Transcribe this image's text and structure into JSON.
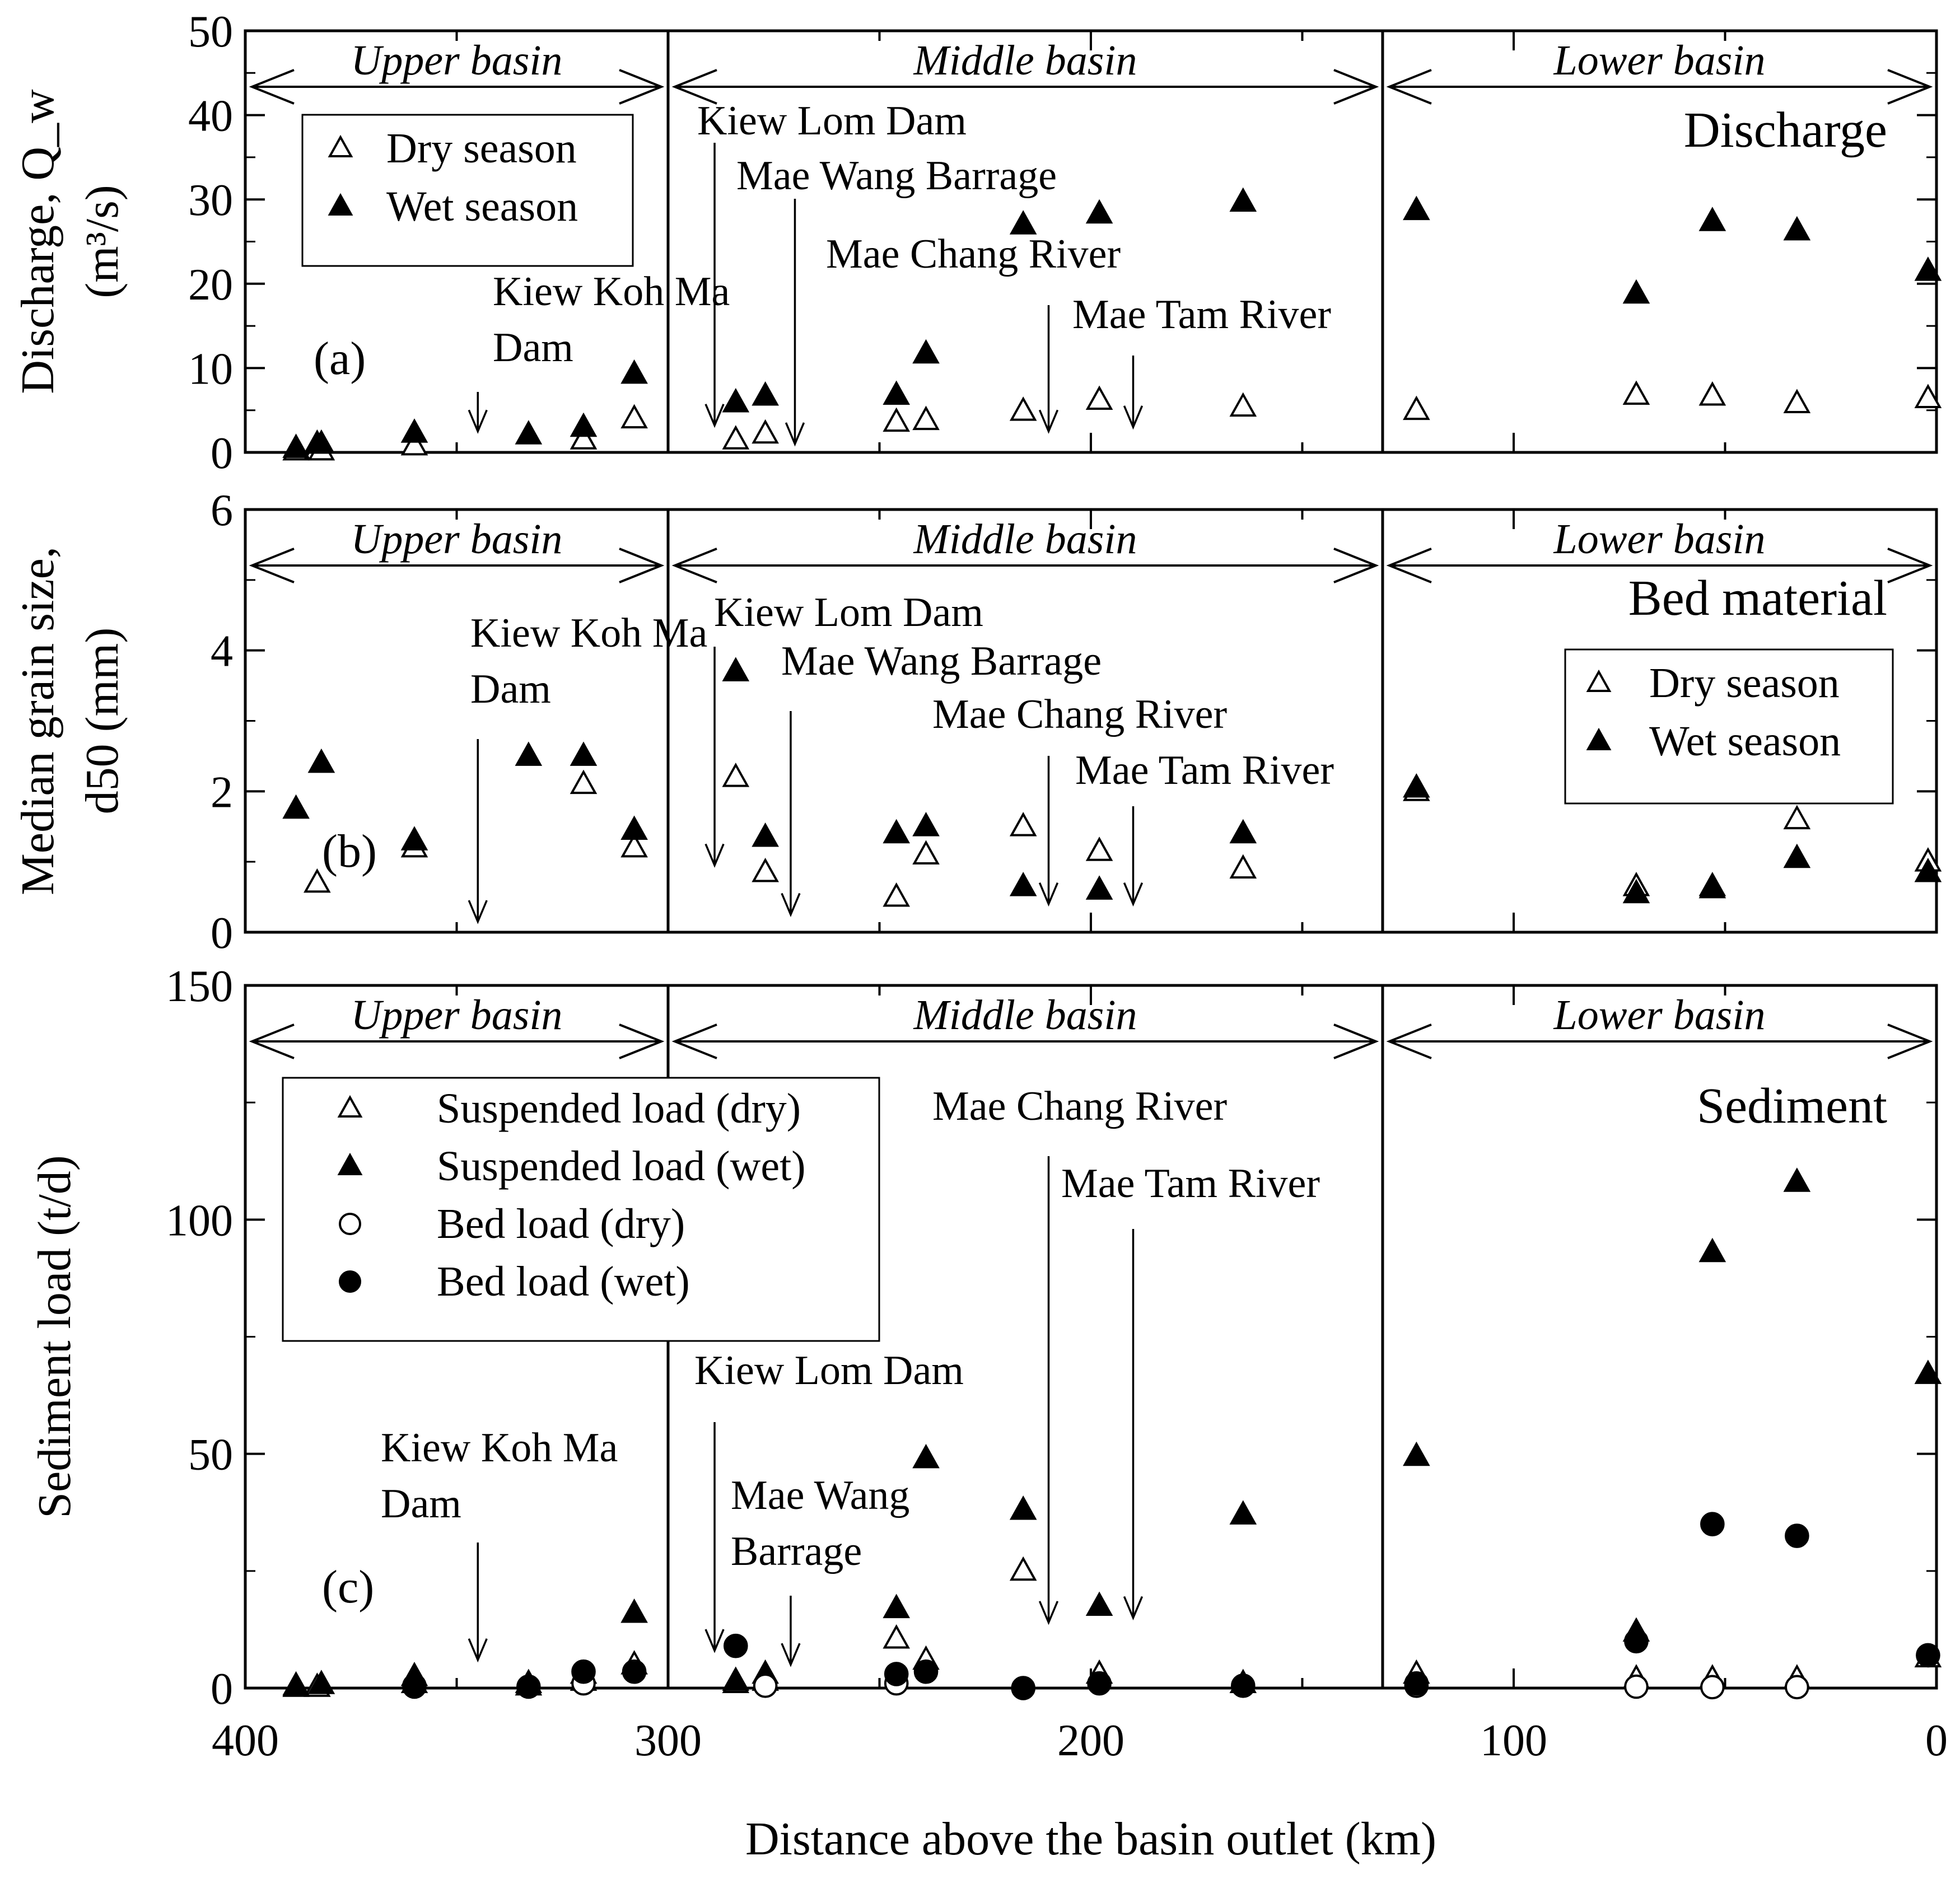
{
  "chart_data": [
    {
      "type": "scatter",
      "panel": "(a)",
      "title": "Discharge",
      "ylabel_lines": [
        "Discharge, Q_w",
        "(m³/s)"
      ],
      "ylim": [
        0,
        50
      ],
      "yticks": [
        0,
        10,
        20,
        30,
        40,
        50
      ],
      "xlim": [
        400,
        0
      ],
      "legend": {
        "entries": [
          "Dry season",
          "Wet season"
        ],
        "placement": "upper-left"
      },
      "regions": [
        "Upper basin",
        "Middle basin",
        "Lower basin"
      ],
      "annotations": [
        {
          "text": "Kiew Koh Ma Dam",
          "x": 345,
          "y_tip": 2.5
        },
        {
          "text": "Kiew Lom Dam",
          "x": 289,
          "y_tip": 3.2
        },
        {
          "text": "Mae Wang Barrage",
          "x": 270,
          "y_tip": 1
        },
        {
          "text": "Mae Chang River",
          "x": 210,
          "y_tip": 2.5
        },
        {
          "text": "Mae Tam River",
          "x": 190,
          "y_tip": 3
        }
      ],
      "series": [
        {
          "name": "Dry season",
          "marker": "open-triangle",
          "x": [
            388,
            383,
            382,
            360,
            320,
            308,
            284,
            277,
            246,
            239,
            216,
            198,
            164,
            123,
            71,
            53,
            33,
            2
          ],
          "y": [
            0.2,
            0.3,
            0.2,
            0.8,
            1.5,
            4,
            1.5,
            2.2,
            3.6,
            3.8,
            4.9,
            6.2,
            5.4,
            5,
            6.8,
            6.7,
            5.8,
            6.4
          ]
        },
        {
          "name": "Wet season",
          "marker": "filled-triangle",
          "x": [
            388,
            383,
            382,
            360,
            333,
            320,
            308,
            284,
            277,
            246,
            239,
            216,
            198,
            164,
            123,
            71,
            53,
            33,
            2
          ],
          "y": [
            0.5,
            1,
            1,
            2.3,
            2.1,
            3,
            9.3,
            5.9,
            6.7,
            6.8,
            11.7,
            27,
            28.3,
            29.7,
            28.7,
            18.8,
            27.4,
            26.3,
            21.5
          ]
        }
      ]
    },
    {
      "type": "scatter",
      "panel": "(b)",
      "title": "Bed material",
      "ylabel_lines": [
        "Median grain size,",
        "d50 (mm)"
      ],
      "ylim": [
        0,
        6
      ],
      "yticks": [
        0,
        2,
        4,
        6
      ],
      "xlim": [
        400,
        0
      ],
      "legend": {
        "entries": [
          "Dry season",
          "Wet season"
        ],
        "placement": "right"
      },
      "regions": [
        "Upper basin",
        "Middle basin",
        "Lower basin"
      ],
      "annotations": [
        {
          "text": "Kiew Koh Ma Dam",
          "x": 345,
          "y_tip": 0.15
        },
        {
          "text": "Kiew Lom Dam",
          "x": 289,
          "y_tip": 0.95
        },
        {
          "text": "Mae Wang Barrage",
          "x": 271,
          "y_tip": 0.25
        },
        {
          "text": "Mae Chang River",
          "x": 210,
          "y_tip": 0.4
        },
        {
          "text": "Mae Tam River",
          "x": 190,
          "y_tip": 0.4
        }
      ],
      "series": [
        {
          "name": "Dry season",
          "marker": "open-triangle",
          "x": [
            383,
            360,
            320,
            308,
            284,
            277,
            246,
            239,
            216,
            198,
            164,
            123,
            71,
            53,
            33,
            2
          ],
          "y": [
            0.7,
            1.2,
            2.1,
            1.2,
            2.2,
            0.85,
            0.5,
            1.1,
            1.5,
            1.15,
            0.9,
            2,
            0.65,
            0.62,
            1.6,
            1
          ]
        },
        {
          "name": "Wet season",
          "marker": "filled-triangle",
          "x": [
            388,
            382,
            360,
            333,
            320,
            308,
            284,
            277,
            246,
            239,
            216,
            198,
            164,
            123,
            71,
            53,
            33,
            2
          ],
          "y": [
            1.75,
            2.4,
            1.3,
            2.5,
            2.5,
            1.45,
            3.7,
            1.35,
            1.4,
            1.5,
            0.65,
            0.6,
            1.4,
            2.05,
            0.55,
            0.65,
            1.05,
            0.85
          ]
        }
      ]
    },
    {
      "type": "scatter",
      "panel": "(c)",
      "title": "Sediment",
      "ylabel_lines": [
        "Sediment load (t/d)"
      ],
      "ylim": [
        0,
        150
      ],
      "yticks": [
        0,
        50,
        100,
        150
      ],
      "xlim": [
        400,
        0
      ],
      "xticks": [
        400,
        300,
        200,
        100,
        0
      ],
      "xlabel": "Distance above the basin outlet (km)",
      "legend": {
        "entries": [
          "Suspended load (dry)",
          "Suspended load (wet)",
          "Bed load (dry)",
          "Bed load (wet)"
        ],
        "placement": "upper-left"
      },
      "regions": [
        "Upper basin",
        "Middle basin",
        "Lower basin"
      ],
      "annotations": [
        {
          "text": "Kiew Koh Ma Dam",
          "x": 345,
          "y_tip": 6
        },
        {
          "text": "Kiew Lom Dam",
          "x": 289,
          "y_tip": 8
        },
        {
          "text": "Mae Wang Barrage",
          "x": 271,
          "y_tip": 5
        },
        {
          "text": "Mae Chang River",
          "x": 210,
          "y_tip": 14
        },
        {
          "text": "Mae Tam River",
          "x": 190,
          "y_tip": 15
        }
      ],
      "series": [
        {
          "name": "Suspended load (dry)",
          "marker": "open-triangle",
          "x": [
            388,
            383,
            360,
            333,
            320,
            308,
            284,
            277,
            246,
            239,
            216,
            198,
            164,
            123,
            71,
            53,
            33,
            2
          ],
          "y": [
            0.2,
            0.2,
            1,
            0.5,
            1.5,
            5,
            1,
            1.5,
            10.5,
            6,
            25,
            3,
            1,
            3,
            2,
            2,
            2,
            6.5
          ]
        },
        {
          "name": "Suspended load (wet)",
          "marker": "filled-triangle",
          "x": [
            388,
            382,
            360,
            333,
            320,
            308,
            284,
            277,
            246,
            239,
            216,
            198,
            164,
            123,
            71,
            53,
            33,
            2
          ],
          "y": [
            0.5,
            0.8,
            2.5,
            1,
            3,
            16,
            1.5,
            3,
            17,
            49,
            38,
            17.5,
            37,
            49.5,
            12,
            93,
            108,
            67
          ]
        },
        {
          "name": "Bed load (dry)",
          "marker": "open-circle",
          "x": [
            360,
            320,
            277,
            246,
            123,
            71,
            53,
            33
          ],
          "y": [
            0.3,
            1,
            0.5,
            1,
            0.5,
            0.3,
            0.2,
            0.2
          ]
        },
        {
          "name": "Bed load (wet)",
          "marker": "filled-circle",
          "x": [
            360,
            333,
            320,
            308,
            284,
            246,
            239,
            216,
            198,
            164,
            123,
            71,
            53,
            33,
            2
          ],
          "y": [
            0.5,
            0.3,
            3.5,
            3.5,
            9,
            3,
            3.5,
            0,
            1,
            0.5,
            1,
            10,
            35,
            32.5,
            7
          ]
        }
      ]
    }
  ]
}
